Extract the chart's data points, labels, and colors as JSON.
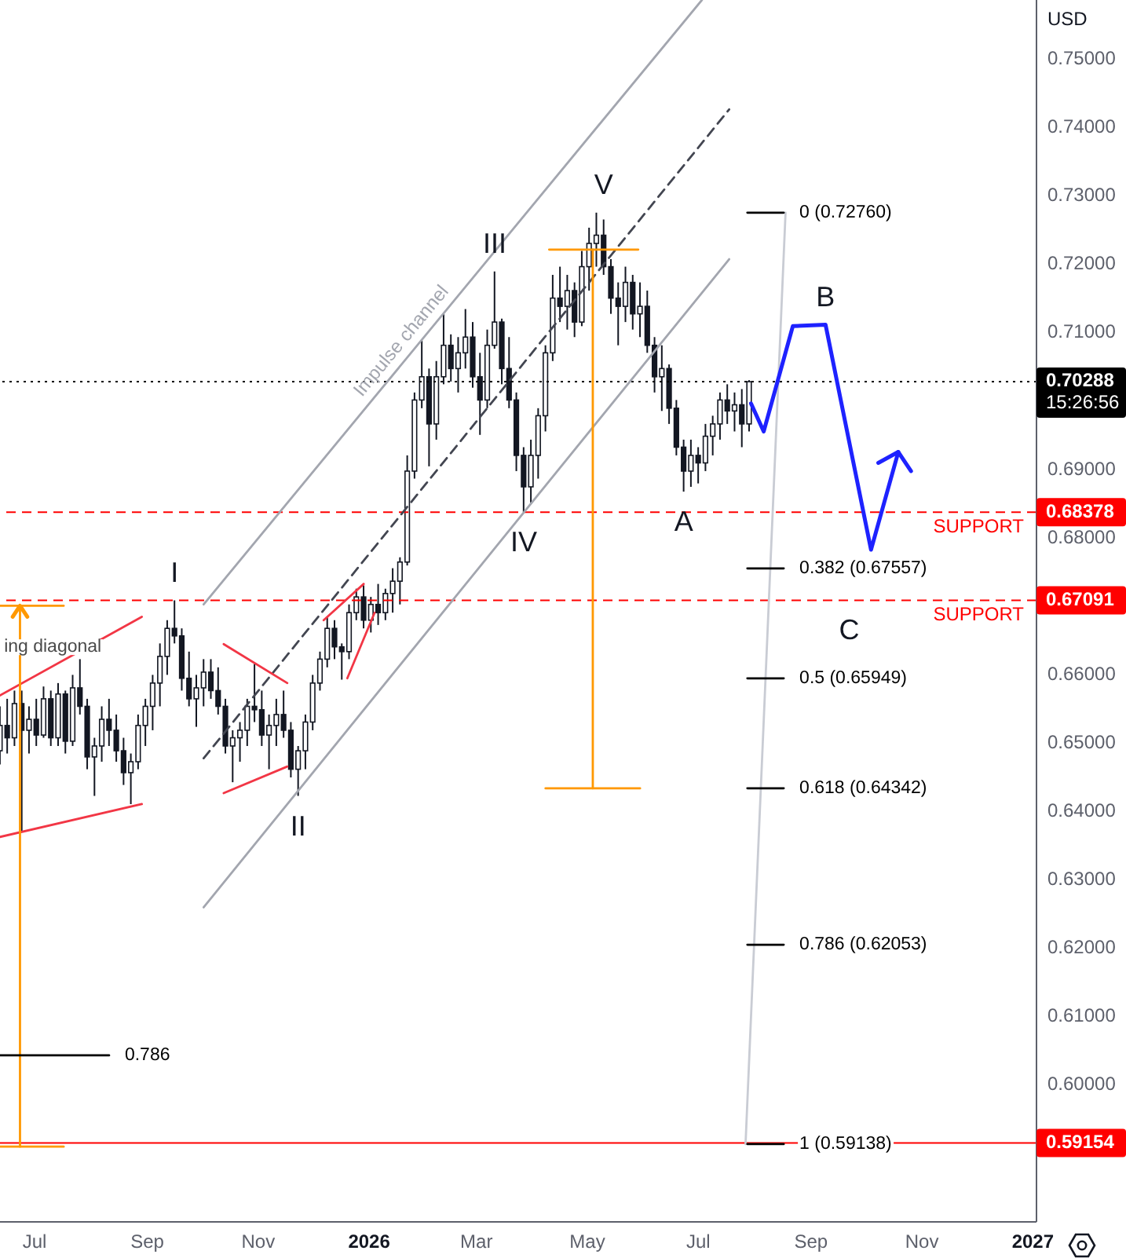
{
  "chart_data": {
    "type": "candlestick",
    "color": "#131722",
    "x": [
      "2025-06-12",
      "2025-06-16",
      "2025-06-20",
      "2025-06-24",
      "2025-06-28",
      "2025-07-02",
      "2025-07-06",
      "2025-07-10",
      "2025-07-14",
      "2025-07-18",
      "2025-07-22",
      "2025-07-26",
      "2025-07-30",
      "2025-08-03",
      "2025-08-07",
      "2025-08-11",
      "2025-08-15",
      "2025-08-19",
      "2025-08-23",
      "2025-08-27",
      "2025-08-31",
      "2025-09-04",
      "2025-09-08",
      "2025-09-12",
      "2025-09-16",
      "2025-09-20",
      "2025-09-24",
      "2025-09-28",
      "2025-10-02",
      "2025-10-06",
      "2025-10-10",
      "2025-10-14",
      "2025-10-18",
      "2025-10-22",
      "2025-10-26",
      "2025-10-30",
      "2025-11-03",
      "2025-11-07",
      "2025-11-11",
      "2025-11-15",
      "2025-11-19",
      "2025-11-23",
      "2025-11-27",
      "2025-12-01",
      "2025-12-05",
      "2025-12-09",
      "2025-12-13",
      "2025-12-17",
      "2025-12-21",
      "2025-12-25",
      "2025-12-29",
      "2026-01-02",
      "2026-01-06",
      "2026-01-10",
      "2026-01-14",
      "2026-01-18",
      "2026-01-22",
      "2026-01-26",
      "2026-01-30",
      "2026-02-03",
      "2026-02-07",
      "2026-02-11",
      "2026-02-15",
      "2026-02-19",
      "2026-02-23",
      "2026-02-27",
      "2026-03-03",
      "2026-03-07",
      "2026-03-11",
      "2026-03-15",
      "2026-03-19",
      "2026-03-23",
      "2026-03-27",
      "2026-03-31",
      "2026-04-04",
      "2026-04-08",
      "2026-04-12",
      "2026-04-16",
      "2026-04-20",
      "2026-04-24",
      "2026-04-28",
      "2026-05-02",
      "2026-05-06",
      "2026-05-10",
      "2026-05-14",
      "2026-05-18",
      "2026-05-22",
      "2026-05-26",
      "2026-05-30",
      "2026-06-03",
      "2026-06-07",
      "2026-06-11",
      "2026-06-15",
      "2026-06-19",
      "2026-06-23",
      "2026-06-27",
      "2026-07-01",
      "2026-07-05",
      "2026-07-09",
      "2026-07-13",
      "2026-07-17",
      "2026-07-21",
      "2026-07-25",
      "2026-07-29"
    ],
    "ohlc": [
      [
        0.6489,
        0.6554,
        0.6469,
        0.6526
      ],
      [
        0.6526,
        0.6565,
        0.6485,
        0.6508
      ],
      [
        0.6508,
        0.6577,
        0.6496,
        0.6558
      ],
      [
        0.6558,
        0.6577,
        0.637,
        0.6519
      ],
      [
        0.6519,
        0.6554,
        0.6485,
        0.6535
      ],
      [
        0.6535,
        0.6565,
        0.6496,
        0.6512
      ],
      [
        0.6512,
        0.6583,
        0.6508,
        0.6565
      ],
      [
        0.6565,
        0.6577,
        0.6496,
        0.6508
      ],
      [
        0.6508,
        0.6588,
        0.6496,
        0.6572
      ],
      [
        0.6572,
        0.6577,
        0.6485,
        0.6503
      ],
      [
        0.6503,
        0.66,
        0.6496,
        0.6581
      ],
      [
        0.6581,
        0.6623,
        0.6542,
        0.6554
      ],
      [
        0.6554,
        0.6565,
        0.6462,
        0.648
      ],
      [
        0.648,
        0.6508,
        0.6423,
        0.6496
      ],
      [
        0.6496,
        0.6554,
        0.6473,
        0.6535
      ],
      [
        0.6535,
        0.6565,
        0.6496,
        0.6519
      ],
      [
        0.6519,
        0.6542,
        0.6473,
        0.6489
      ],
      [
        0.6489,
        0.6508,
        0.6439,
        0.6457
      ],
      [
        0.6457,
        0.6485,
        0.6411,
        0.6473
      ],
      [
        0.6473,
        0.6542,
        0.6462,
        0.6526
      ],
      [
        0.6526,
        0.6565,
        0.6496,
        0.6554
      ],
      [
        0.6554,
        0.66,
        0.6519,
        0.6588
      ],
      [
        0.6588,
        0.6646,
        0.6554,
        0.6627
      ],
      [
        0.6627,
        0.668,
        0.66,
        0.6668
      ],
      [
        0.6668,
        0.6709,
        0.6646,
        0.6657
      ],
      [
        0.6657,
        0.6668,
        0.6577,
        0.6595
      ],
      [
        0.6595,
        0.6634,
        0.6554,
        0.6565
      ],
      [
        0.6565,
        0.66,
        0.6524,
        0.6581
      ],
      [
        0.6581,
        0.6623,
        0.6554,
        0.6604
      ],
      [
        0.6604,
        0.6623,
        0.6565,
        0.6577
      ],
      [
        0.6577,
        0.6611,
        0.6542,
        0.6554
      ],
      [
        0.6554,
        0.6565,
        0.6485,
        0.6496
      ],
      [
        0.6496,
        0.6519,
        0.6443,
        0.6508
      ],
      [
        0.6508,
        0.6531,
        0.6473,
        0.6519
      ],
      [
        0.6519,
        0.6565,
        0.6496,
        0.6554
      ],
      [
        0.6554,
        0.6616,
        0.6531,
        0.6549
      ],
      [
        0.6549,
        0.6577,
        0.6496,
        0.6512
      ],
      [
        0.6512,
        0.6542,
        0.6462,
        0.6526
      ],
      [
        0.6526,
        0.6565,
        0.6496,
        0.6542
      ],
      [
        0.6542,
        0.6577,
        0.6508,
        0.6519
      ],
      [
        0.6519,
        0.6531,
        0.645,
        0.6462
      ],
      [
        0.6462,
        0.6496,
        0.6423,
        0.6489
      ],
      [
        0.6489,
        0.6542,
        0.6462,
        0.6531
      ],
      [
        0.6531,
        0.66,
        0.6519,
        0.6588
      ],
      [
        0.6588,
        0.6634,
        0.6577,
        0.6623
      ],
      [
        0.6623,
        0.6685,
        0.6611,
        0.6668
      ],
      [
        0.6668,
        0.668,
        0.6623,
        0.6641
      ],
      [
        0.6641,
        0.6646,
        0.6593,
        0.6634
      ],
      [
        0.6634,
        0.6703,
        0.6623,
        0.6691
      ],
      [
        0.6691,
        0.6726,
        0.668,
        0.6714
      ],
      [
        0.6714,
        0.6731,
        0.6668,
        0.668
      ],
      [
        0.668,
        0.6714,
        0.6662,
        0.6703
      ],
      [
        0.6703,
        0.6733,
        0.6673,
        0.6691
      ],
      [
        0.6691,
        0.6726,
        0.668,
        0.6719
      ],
      [
        0.6719,
        0.6756,
        0.6691,
        0.6737
      ],
      [
        0.6737,
        0.6772,
        0.6703,
        0.6765
      ],
      [
        0.6765,
        0.6921,
        0.676,
        0.6898
      ],
      [
        0.6898,
        0.7013,
        0.6887,
        0.7002
      ],
      [
        0.7002,
        0.7089,
        0.699,
        0.7036
      ],
      [
        0.7036,
        0.7048,
        0.6905,
        0.6967
      ],
      [
        0.6967,
        0.7059,
        0.6944,
        0.7036
      ],
      [
        0.7036,
        0.7128,
        0.7025,
        0.7082
      ],
      [
        0.7082,
        0.7098,
        0.7029,
        0.7048
      ],
      [
        0.7048,
        0.7094,
        0.7013,
        0.7071
      ],
      [
        0.7071,
        0.7135,
        0.7048,
        0.7094
      ],
      [
        0.7094,
        0.7116,
        0.702,
        0.7036
      ],
      [
        0.7036,
        0.7071,
        0.6951,
        0.7002
      ],
      [
        0.7002,
        0.7105,
        0.699,
        0.7082
      ],
      [
        0.7082,
        0.719,
        0.7077,
        0.7116
      ],
      [
        0.7116,
        0.7121,
        0.7025,
        0.7048
      ],
      [
        0.7048,
        0.7094,
        0.699,
        0.7002
      ],
      [
        0.7002,
        0.7013,
        0.6898,
        0.6921
      ],
      [
        0.6921,
        0.6933,
        0.6838,
        0.6875
      ],
      [
        0.6875,
        0.6944,
        0.6852,
        0.6921
      ],
      [
        0.6921,
        0.699,
        0.6887,
        0.6979
      ],
      [
        0.6979,
        0.7082,
        0.6956,
        0.7071
      ],
      [
        0.7071,
        0.7185,
        0.7059,
        0.7151
      ],
      [
        0.7151,
        0.7197,
        0.7116,
        0.7139
      ],
      [
        0.7139,
        0.7185,
        0.7105,
        0.7162
      ],
      [
        0.7162,
        0.7174,
        0.7094,
        0.7116
      ],
      [
        0.7116,
        0.722,
        0.711,
        0.7197
      ],
      [
        0.7197,
        0.7254,
        0.7162,
        0.7231
      ],
      [
        0.7231,
        0.7276,
        0.7197,
        0.7243
      ],
      [
        0.7243,
        0.7266,
        0.7185,
        0.7197
      ],
      [
        0.7197,
        0.7208,
        0.7128,
        0.7151
      ],
      [
        0.7151,
        0.7174,
        0.7082,
        0.7139
      ],
      [
        0.7139,
        0.7197,
        0.7116,
        0.7174
      ],
      [
        0.7174,
        0.7185,
        0.7105,
        0.7128
      ],
      [
        0.7128,
        0.7174,
        0.7094,
        0.7139
      ],
      [
        0.7139,
        0.7162,
        0.7071,
        0.7082
      ],
      [
        0.7082,
        0.7094,
        0.7013,
        0.7036
      ],
      [
        0.7036,
        0.7082,
        0.6986,
        0.7048
      ],
      [
        0.7048,
        0.7054,
        0.6967,
        0.699
      ],
      [
        0.699,
        0.7002,
        0.6921,
        0.6933
      ],
      [
        0.6933,
        0.6944,
        0.6868,
        0.6898
      ],
      [
        0.6898,
        0.6944,
        0.6875,
        0.6921
      ],
      [
        0.6921,
        0.6933,
        0.688,
        0.691
      ],
      [
        0.691,
        0.6967,
        0.6898,
        0.6949
      ],
      [
        0.6949,
        0.6979,
        0.6921,
        0.6967
      ],
      [
        0.6967,
        0.7013,
        0.6944,
        0.7002
      ],
      [
        0.7002,
        0.7025,
        0.6967,
        0.6986
      ],
      [
        0.6986,
        0.7013,
        0.6956,
        0.6995
      ],
      [
        0.6995,
        0.7018,
        0.6933,
        0.6967
      ],
      [
        0.6967,
        0.7031,
        0.6956,
        0.70288
      ]
    ],
    "xlim": [
      "2025-06-12",
      "2027-01-03"
    ],
    "xticks": [
      {
        "value": "2025-07-01",
        "label": "Jul"
      },
      {
        "value": "2025-09-01",
        "label": "Sep"
      },
      {
        "value": "2025-11-01",
        "label": "Nov"
      },
      {
        "value": "2026-01-01",
        "label": "2026"
      },
      {
        "value": "2026-03-01",
        "label": "Mar"
      },
      {
        "value": "2026-05-01",
        "label": "May"
      },
      {
        "value": "2026-07-01",
        "label": "Jul"
      },
      {
        "value": "2026-09-01",
        "label": "Sep"
      },
      {
        "value": "2026-11-01",
        "label": "Nov"
      },
      {
        "value": "2027-01-01",
        "label": "2027"
      }
    ],
    "ylim": [
      0.58,
      0.7587
    ],
    "yticks": [
      0.59154,
      {
        "value": 0.6,
        "label": "0.60000"
      },
      {
        "value": 0.61,
        "label": "0.61000"
      },
      {
        "value": 0.62,
        "label": "0.62000"
      },
      {
        "value": 0.63,
        "label": "0.63000"
      },
      {
        "value": 0.64,
        "label": "0.64000"
      },
      {
        "value": 0.65,
        "label": "0.65000"
      },
      {
        "value": 0.66,
        "label": "0.66000"
      },
      0.67091,
      {
        "value": 0.68,
        "label": "0.68000"
      },
      0.68378,
      {
        "value": 0.69,
        "label": "0.69000"
      },
      0.70288,
      {
        "value": 0.71,
        "label": "0.71000"
      },
      {
        "value": 0.72,
        "label": "0.72000"
      },
      {
        "value": 0.73,
        "label": "0.73000"
      },
      {
        "value": 0.74,
        "label": "0.74000"
      },
      {
        "value": 0.75,
        "label": "0.75000"
      }
    ],
    "ylabel": "USD",
    "series": [
      {
        "type": "line",
        "name": "Impulse channel",
        "color": "#a3a6af",
        "x": [
          "2025-10-02",
          "2026-07-03"
        ],
        "values": [
          0.6703,
          0.7587
        ]
      },
      {
        "type": "line",
        "color": "#434651",
        "line_style": "dashed",
        "x": [
          "2025-10-02",
          "2026-07-18"
        ],
        "values": [
          0.6478,
          0.7427
        ]
      },
      {
        "type": "line",
        "color": "#a3a6af",
        "x": [
          "2025-10-02",
          "2026-07-18"
        ],
        "values": [
          0.626,
          0.7208
        ]
      },
      {
        "type": "line",
        "color": "#f23645",
        "x": [
          "2025-06-12",
          "2025-08-29"
        ],
        "values": [
          0.657,
          0.6685
        ]
      },
      {
        "type": "line",
        "color": "#f23645",
        "x": [
          "2025-06-12",
          "2025-08-29"
        ],
        "values": [
          0.6363,
          0.6411
        ]
      },
      {
        "type": "line",
        "color": "#f23645",
        "x": [
          "2025-10-13",
          "2025-11-17"
        ],
        "values": [
          0.6645,
          0.6588
        ]
      },
      {
        "type": "line",
        "color": "#f23645",
        "x": [
          "2025-10-13",
          "2025-11-17"
        ],
        "values": [
          0.6427,
          0.6466
        ]
      },
      {
        "type": "line",
        "color": "#f23645",
        "x": [
          "2025-12-07",
          "2025-12-29"
        ],
        "values": [
          0.668,
          0.6733
        ]
      },
      {
        "type": "line",
        "color": "#f23645",
        "x": [
          "2025-12-20",
          "2026-01-04"
        ],
        "values": [
          0.6595,
          0.6691
        ]
      },
      {
        "type": "line",
        "color": "#ff9800",
        "x": [
          "2025-06-23",
          "2025-06-23"
        ],
        "values": [
          0.6701,
          0.591
        ]
      },
      {
        "type": "line",
        "color": "#ff9800",
        "x": [
          "2025-06-12",
          "2025-07-17"
        ],
        "values": [
          0.6701,
          0.6701
        ]
      },
      {
        "type": "line",
        "color": "#ff9800",
        "x": [
          "2025-06-19",
          "2025-06-23",
          "2025-06-27"
        ],
        "values": [
          0.6685,
          0.6701,
          0.6685
        ]
      },
      {
        "type": "line",
        "color": "#ff9800",
        "x": [
          "2025-06-12",
          "2025-07-17"
        ],
        "values": [
          0.591,
          0.591
        ]
      },
      {
        "type": "line",
        "color": "#ff9800",
        "x": [
          "2026-05-04",
          "2026-05-04"
        ],
        "values": [
          0.7222,
          0.6434
        ]
      },
      {
        "type": "line",
        "color": "#ff9800",
        "x": [
          "2026-04-10",
          "2026-05-29"
        ],
        "values": [
          0.7222,
          0.7222
        ]
      },
      {
        "type": "line",
        "color": "#ff9800",
        "x": [
          "2026-04-08",
          "2026-05-30"
        ],
        "values": [
          0.6434,
          0.6434
        ]
      },
      {
        "type": "line",
        "color": "#c9ccd4",
        "x": [
          "2026-08-18",
          "2026-07-27"
        ],
        "values": [
          0.7276,
          0.59138
        ]
      },
      {
        "type": "line",
        "name": "0 (0.72760)",
        "color": "#000000",
        "x": [
          "2026-07-28",
          "2026-08-17"
        ],
        "values": [
          0.7276,
          0.7276
        ]
      },
      {
        "type": "line",
        "name": "0.382 (0.67557)",
        "color": "#000000",
        "x": [
          "2026-07-28",
          "2026-08-17"
        ],
        "values": [
          0.67557,
          0.67557
        ]
      },
      {
        "type": "line",
        "name": "0.5 (0.65949)",
        "color": "#000000",
        "x": [
          "2026-07-28",
          "2026-08-17"
        ],
        "values": [
          0.65949,
          0.65949
        ]
      },
      {
        "type": "line",
        "name": "0.618 (0.64342)",
        "color": "#000000",
        "x": [
          "2026-07-28",
          "2026-08-17"
        ],
        "values": [
          0.64342,
          0.64342
        ]
      },
      {
        "type": "line",
        "name": "0.786 (0.62053)",
        "color": "#000000",
        "x": [
          "2026-07-28",
          "2026-08-17"
        ],
        "values": [
          0.62053,
          0.62053
        ]
      },
      {
        "type": "line",
        "name": "1 (0.59138)",
        "color": "#000000",
        "x": [
          "2026-07-28",
          "2026-08-17"
        ],
        "values": [
          0.59138,
          0.59138
        ]
      },
      {
        "type": "line",
        "name": "0.786",
        "color": "#000000",
        "x": [
          "2025-06-12",
          "2025-08-11"
        ],
        "values": [
          0.60436,
          0.60436
        ]
      },
      {
        "type": "line",
        "color": "#1e22ff",
        "x": [
          "2026-07-30",
          "2026-08-06",
          "2026-08-22",
          "2026-09-09",
          "2026-10-04",
          "2026-10-19"
        ],
        "values": [
          0.6997,
          0.6956,
          0.711,
          0.7112,
          0.6783,
          0.6926
        ]
      },
      {
        "type": "line",
        "color": "#1e22ff",
        "x": [
          "2026-10-08",
          "2026-10-19",
          "2026-10-26"
        ],
        "values": [
          0.691,
          0.6926,
          0.6898
        ]
      }
    ],
    "ref_lines": [
      {
        "axis": "y",
        "value": 0.70288,
        "color": "#000000",
        "line_style": "dotted"
      },
      {
        "axis": "y",
        "value": 0.68378,
        "label": "SUPPORT",
        "color": "#ff0000",
        "line_style": "dashed"
      },
      {
        "axis": "y",
        "value": 0.67091,
        "label": "SUPPORT",
        "color": "#ff0000",
        "line_style": "dashed"
      },
      {
        "axis": "y",
        "value": 0.59154,
        "color": "#ff0000",
        "line_style": "solid"
      }
    ],
    "annotations": [
      "15:26:56",
      {
        "text": "ing diagonal",
        "x": "2025-07-11",
        "y": 0.6613
      },
      {
        "text": "I",
        "x": "2025-09-16",
        "y": 0.6709
      },
      {
        "text": "II",
        "x": "2025-11-23",
        "y": 0.6423
      },
      {
        "text": "III",
        "x": "2026-03-11",
        "y": 0.719
      },
      {
        "text": "IV",
        "x": "2026-03-27",
        "y": 0.6838
      },
      {
        "text": "V",
        "x": "2026-05-10",
        "y": 0.7276
      },
      {
        "text": "A",
        "x": "2026-06-23",
        "y": 0.6868
      },
      {
        "text": "B",
        "x": "2026-09-09",
        "y": 0.7112
      },
      {
        "text": "C",
        "x": "2026-09-22",
        "y": 0.67091
      }
    ]
  }
}
